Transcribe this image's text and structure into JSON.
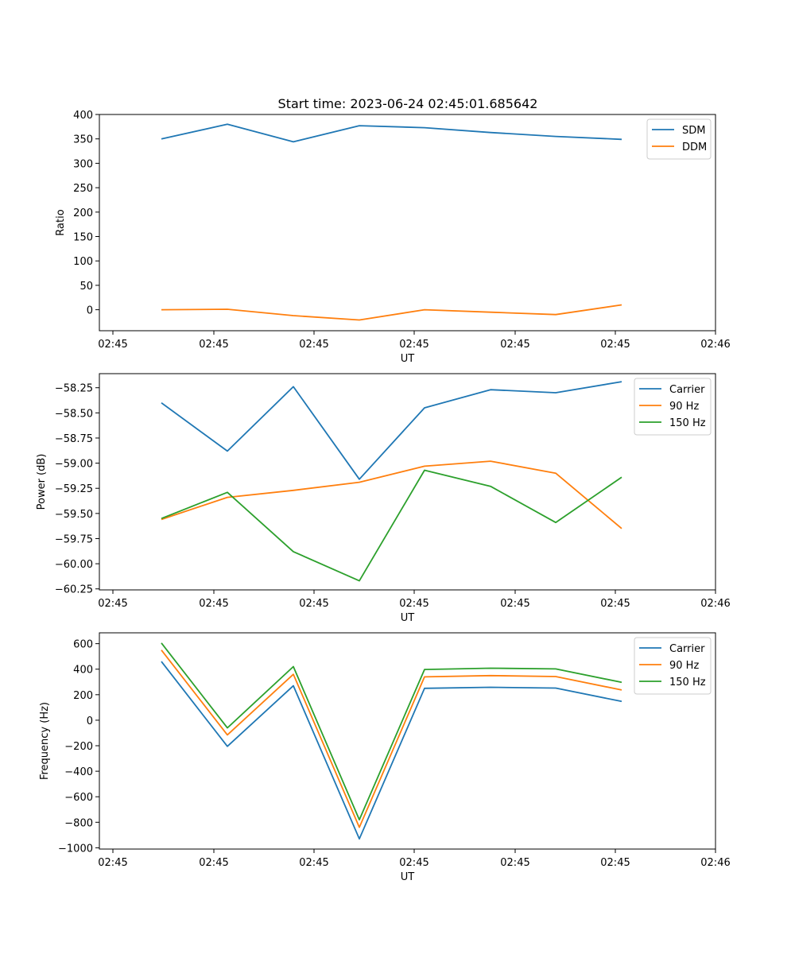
{
  "figure": {
    "title": "Start time: 2023-06-24 02:45:01.685642"
  },
  "chart_data": [
    {
      "type": "line",
      "title": "Start time: 2023-06-24 02:45:01.685642",
      "xlabel": "UT",
      "ylabel": "Ratio",
      "x_ticks": [
        "02:45",
        "02:45",
        "02:45",
        "02:45",
        "02:45",
        "02:45",
        "02:46"
      ],
      "y_ticks": [
        0,
        50,
        100,
        150,
        200,
        250,
        300,
        350,
        400
      ],
      "ylim": [
        -43,
        400
      ],
      "legend": "top-right",
      "series": [
        {
          "name": "SDM",
          "color": "#1f77b4",
          "values": [
            350,
            380,
            344,
            377,
            373,
            363,
            355,
            349
          ]
        },
        {
          "name": "DDM",
          "color": "#ff7f0e",
          "values": [
            0,
            1,
            -12,
            -21,
            0,
            -5,
            -10,
            10
          ]
        }
      ]
    },
    {
      "type": "line",
      "xlabel": "UT",
      "ylabel": "Power (dB)",
      "x_ticks": [
        "02:45",
        "02:45",
        "02:45",
        "02:45",
        "02:45",
        "02:45",
        "02:46"
      ],
      "y_ticks": [
        -60.25,
        -60.0,
        -59.75,
        -59.5,
        -59.25,
        -59.0,
        -58.75,
        -58.5,
        -58.25
      ],
      "y_tick_labels": [
        "−60.25",
        "−60.00",
        "−59.75",
        "−59.50",
        "−59.25",
        "−59.00",
        "−58.75",
        "−58.50",
        "−58.25"
      ],
      "ylim": [
        -60.26,
        -58.11
      ],
      "legend": "top-right",
      "series": [
        {
          "name": "Carrier",
          "color": "#1f77b4",
          "values": [
            -58.4,
            -58.88,
            -58.24,
            -59.16,
            -58.45,
            -58.27,
            -58.3,
            -58.19
          ]
        },
        {
          "name": "90 Hz",
          "color": "#ff7f0e",
          "values": [
            -59.56,
            -59.34,
            -59.27,
            -59.19,
            -59.03,
            -58.98,
            -59.1,
            -59.65
          ]
        },
        {
          "name": "150 Hz",
          "color": "#2ca02c",
          "values": [
            -59.55,
            -59.29,
            -59.88,
            -60.17,
            -59.07,
            -59.23,
            -59.59,
            -59.14
          ]
        }
      ]
    },
    {
      "type": "line",
      "xlabel": "UT",
      "ylabel": "Frequency (Hz)",
      "x_ticks": [
        "02:45",
        "02:45",
        "02:45",
        "02:45",
        "02:45",
        "02:45",
        "02:46"
      ],
      "y_ticks": [
        -1000,
        -800,
        -600,
        -400,
        -200,
        0,
        200,
        400,
        600
      ],
      "y_tick_labels": [
        "−1000",
        "−800",
        "−600",
        "−400",
        "−200",
        "0",
        "200",
        "400",
        "600"
      ],
      "ylim": [
        -1010,
        685
      ],
      "legend": "top-right",
      "series": [
        {
          "name": "Carrier",
          "color": "#1f77b4",
          "values": [
            460,
            -205,
            270,
            -930,
            250,
            258,
            252,
            147
          ]
        },
        {
          "name": "90 Hz",
          "color": "#ff7f0e",
          "values": [
            550,
            -115,
            360,
            -840,
            340,
            350,
            342,
            237
          ]
        },
        {
          "name": "150 Hz",
          "color": "#2ca02c",
          "values": [
            605,
            -60,
            420,
            -780,
            398,
            408,
            402,
            297
          ]
        }
      ]
    }
  ]
}
